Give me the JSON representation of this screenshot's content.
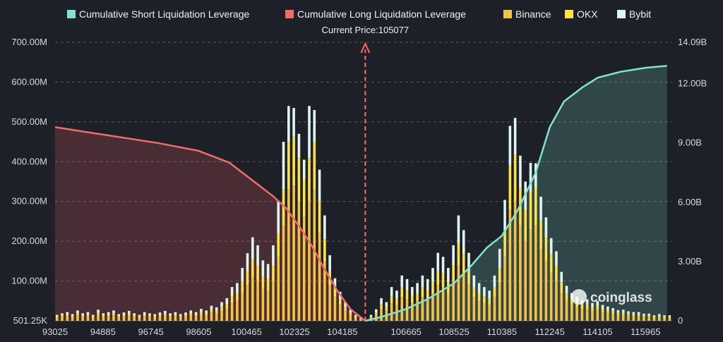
{
  "chart_data": {
    "type": "bar",
    "title": "",
    "legend": {
      "position": "top-center",
      "items": [
        {
          "label": "Cumulative Short Liquidation Leverage",
          "color": "#7fe3d0"
        },
        {
          "label": "Cumulative Long Liquidation Leverage",
          "color": "#f26b6b"
        },
        {
          "label": "Binance",
          "color": "#f5c242"
        },
        {
          "label": "OKX",
          "color": "#ffe14a"
        },
        {
          "label": "Bybit",
          "color": "#dff5f3"
        }
      ]
    },
    "current_price": {
      "label": "Current Price:105077",
      "value": 105077
    },
    "x_range": [
      93025,
      117000
    ],
    "x_ticks": [
      "93025",
      "94885",
      "96745",
      "98605",
      "100465",
      "102325",
      "104185",
      "106665",
      "108525",
      "110385",
      "112245",
      "114105",
      "115965"
    ],
    "x_tick_values": [
      93025,
      94885,
      96745,
      98605,
      100465,
      102325,
      104185,
      106665,
      108525,
      110385,
      112245,
      114105,
      115965
    ],
    "y_left": {
      "ticks": [
        "501.25K",
        "100.00M",
        "200.00M",
        "300.00M",
        "400.00M",
        "500.00M",
        "600.00M",
        "700.00M"
      ],
      "range": [
        0,
        700
      ]
    },
    "y_right": {
      "ticks": [
        "0",
        "3.00B",
        "6.00B",
        "9.00B",
        "12.00B",
        "14.09B"
      ],
      "range": [
        0,
        14.09
      ]
    },
    "series": [
      {
        "name": "Cumulative Long Liquidation Leverage",
        "axis": "right",
        "points": [
          [
            93025,
            9.8
          ],
          [
            94000,
            9.6
          ],
          [
            95500,
            9.3
          ],
          [
            97000,
            9.0
          ],
          [
            98605,
            8.6
          ],
          [
            99800,
            8.0
          ],
          [
            100800,
            7.0
          ],
          [
            101500,
            6.3
          ],
          [
            102000,
            5.7
          ],
          [
            102500,
            4.8
          ],
          [
            103000,
            3.8
          ],
          [
            103500,
            2.6
          ],
          [
            104000,
            1.5
          ],
          [
            104500,
            0.6
          ],
          [
            105077,
            0.0
          ]
        ]
      },
      {
        "name": "Cumulative Short Liquidation Leverage",
        "axis": "right",
        "points": [
          [
            105077,
            0.0
          ],
          [
            105700,
            0.2
          ],
          [
            106665,
            0.6
          ],
          [
            107500,
            1.1
          ],
          [
            108525,
            1.9
          ],
          [
            109200,
            2.8
          ],
          [
            109800,
            3.7
          ],
          [
            110385,
            4.3
          ],
          [
            111000,
            5.6
          ],
          [
            111700,
            7.5
          ],
          [
            112245,
            9.8
          ],
          [
            112800,
            11.1
          ],
          [
            113500,
            11.8
          ],
          [
            114105,
            12.3
          ],
          [
            115000,
            12.6
          ],
          [
            115965,
            12.8
          ],
          [
            116800,
            12.9
          ]
        ]
      }
    ],
    "liquidation_bars": {
      "unit": "M",
      "stack_order": [
        "Binance",
        "OKX",
        "Bybit"
      ],
      "x": [
        93100,
        93300,
        93500,
        93700,
        93900,
        94100,
        94300,
        94500,
        94700,
        94900,
        95100,
        95300,
        95500,
        95700,
        95900,
        96100,
        96300,
        96500,
        96700,
        96900,
        97100,
        97300,
        97500,
        97700,
        97900,
        98100,
        98300,
        98500,
        98700,
        98900,
        99100,
        99300,
        99500,
        99700,
        99900,
        100100,
        100300,
        100500,
        100700,
        100900,
        101100,
        101300,
        101500,
        101700,
        101900,
        102100,
        102300,
        102500,
        102700,
        102900,
        103100,
        103300,
        103500,
        103700,
        103900,
        104100,
        104300,
        104500,
        104700,
        104900,
        105300,
        105500,
        105700,
        105900,
        106100,
        106300,
        106500,
        106700,
        106900,
        107100,
        107300,
        107500,
        107700,
        107900,
        108100,
        108300,
        108500,
        108700,
        108900,
        109100,
        109300,
        109500,
        109700,
        109900,
        110100,
        110300,
        110500,
        110700,
        110900,
        111100,
        111300,
        111500,
        111700,
        111900,
        112100,
        112300,
        112500,
        112700,
        112900,
        113100,
        113300,
        113500,
        113700,
        113900,
        114100,
        114300,
        114500,
        114700,
        114900,
        115100,
        115300,
        115500,
        115700,
        115900,
        116100,
        116300,
        116500,
        116700,
        116900
      ],
      "Binance": [
        8,
        10,
        12,
        9,
        14,
        10,
        12,
        8,
        15,
        10,
        12,
        14,
        9,
        11,
        13,
        10,
        8,
        12,
        10,
        9,
        11,
        13,
        10,
        12,
        9,
        11,
        14,
        12,
        16,
        14,
        20,
        18,
        25,
        30,
        45,
        50,
        70,
        90,
        110,
        100,
        80,
        75,
        100,
        160,
        240,
        330,
        340,
        300,
        260,
        300,
        330,
        220,
        150,
        90,
        60,
        40,
        25,
        15,
        8,
        4,
        8,
        15,
        30,
        25,
        45,
        40,
        60,
        55,
        45,
        50,
        60,
        55,
        70,
        90,
        85,
        70,
        100,
        140,
        120,
        90,
        60,
        50,
        45,
        40,
        60,
        95,
        160,
        280,
        300,
        240,
        200,
        230,
        240,
        180,
        150,
        120,
        100,
        70,
        50,
        40,
        35,
        30,
        30,
        25,
        28,
        22,
        20,
        18,
        15,
        16,
        14,
        12,
        12,
        10,
        10,
        8,
        9,
        8,
        8
      ],
      "OKX": [
        3,
        4,
        4,
        3,
        5,
        4,
        4,
        3,
        5,
        4,
        4,
        5,
        3,
        4,
        5,
        4,
        3,
        4,
        4,
        3,
        4,
        5,
        4,
        4,
        3,
        4,
        5,
        4,
        6,
        5,
        8,
        7,
        10,
        12,
        18,
        20,
        28,
        35,
        45,
        40,
        32,
        30,
        40,
        60,
        90,
        120,
        125,
        110,
        95,
        110,
        120,
        80,
        55,
        35,
        22,
        15,
        10,
        6,
        3,
        2,
        3,
        6,
        12,
        10,
        18,
        16,
        24,
        22,
        18,
        20,
        24,
        22,
        28,
        36,
        34,
        28,
        40,
        55,
        48,
        36,
        24,
        20,
        18,
        16,
        24,
        38,
        64,
        110,
        120,
        95,
        80,
        92,
        96,
        72,
        60,
        48,
        40,
        28,
        20,
        16,
        14,
        12,
        12,
        10,
        11,
        9,
        8,
        7,
        6,
        6,
        5,
        5,
        5,
        4,
        4,
        3,
        4,
        3,
        3
      ],
      "Bybit": [
        4,
        5,
        6,
        5,
        7,
        5,
        6,
        4,
        8,
        5,
        6,
        7,
        5,
        6,
        7,
        5,
        4,
        6,
        5,
        5,
        6,
        7,
        5,
        6,
        5,
        6,
        7,
        6,
        8,
        7,
        10,
        9,
        12,
        15,
        22,
        25,
        35,
        45,
        55,
        50,
        40,
        38,
        50,
        80,
        120,
        90,
        70,
        60,
        50,
        130,
        80,
        80,
        60,
        40,
        25,
        18,
        12,
        7,
        4,
        2,
        4,
        8,
        15,
        12,
        22,
        20,
        30,
        28,
        22,
        25,
        30,
        28,
        35,
        45,
        42,
        35,
        50,
        70,
        60,
        45,
        30,
        25,
        22,
        20,
        30,
        48,
        80,
        100,
        90,
        80,
        70,
        75,
        60,
        60,
        50,
        40,
        35,
        25,
        18,
        14,
        12,
        10,
        12,
        10,
        11,
        9,
        8,
        7,
        6,
        6,
        5,
        5,
        5,
        4,
        4,
        3,
        4,
        3,
        3
      ]
    },
    "watermark": "coinglass"
  }
}
